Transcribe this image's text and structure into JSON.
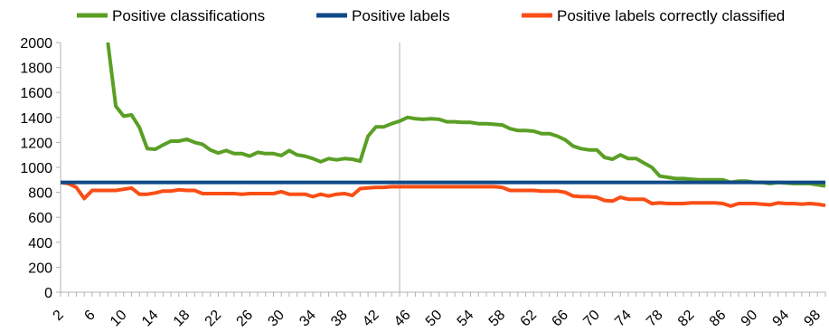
{
  "chart_data": {
    "type": "line",
    "title": "",
    "xlabel": "",
    "ylabel": "",
    "x": [
      2,
      3,
      4,
      5,
      6,
      7,
      8,
      9,
      10,
      11,
      12,
      13,
      14,
      15,
      16,
      17,
      18,
      19,
      20,
      21,
      22,
      23,
      24,
      25,
      26,
      27,
      28,
      29,
      30,
      31,
      32,
      33,
      34,
      35,
      36,
      37,
      38,
      39,
      40,
      41,
      42,
      43,
      44,
      45,
      46,
      47,
      48,
      49,
      50,
      51,
      52,
      53,
      54,
      55,
      56,
      57,
      58,
      59,
      60,
      61,
      62,
      63,
      64,
      65,
      66,
      67,
      68,
      69,
      70,
      71,
      72,
      73,
      74,
      75,
      76,
      77,
      78,
      79,
      80,
      81,
      82,
      83,
      84,
      85,
      86,
      87,
      88,
      89,
      90,
      91,
      92,
      93,
      94,
      95,
      96,
      97,
      98,
      99
    ],
    "x_tick_labels": [
      "2",
      "6",
      "10",
      "14",
      "18",
      "22",
      "26",
      "30",
      "34",
      "38",
      "42",
      "46",
      "50",
      "54",
      "58",
      "62",
      "66",
      "70",
      "74",
      "78",
      "82",
      "86",
      "90",
      "94",
      "98"
    ],
    "ylim": [
      0,
      2000
    ],
    "y_ticks": [
      0,
      200,
      400,
      600,
      800,
      1000,
      1200,
      1400,
      1600,
      1800,
      2000
    ],
    "grid": "vertical line at x=45",
    "legend_position": "top",
    "series": [
      {
        "name": "Positive classifications",
        "color": "#5a9f25",
        "values": [
          null,
          null,
          null,
          null,
          null,
          null,
          2000,
          1490,
          1410,
          1420,
          1320,
          1150,
          1145,
          1180,
          1210,
          1210,
          1225,
          1200,
          1185,
          1140,
          1115,
          1135,
          1110,
          1110,
          1090,
          1120,
          1110,
          1110,
          1095,
          1135,
          1100,
          1090,
          1070,
          1045,
          1070,
          1060,
          1070,
          1065,
          1050,
          1250,
          1325,
          1325,
          1350,
          1370,
          1400,
          1390,
          1385,
          1390,
          1385,
          1365,
          1365,
          1360,
          1360,
          1350,
          1350,
          1345,
          1340,
          1310,
          1295,
          1295,
          1290,
          1270,
          1270,
          1250,
          1220,
          1170,
          1150,
          1140,
          1140,
          1080,
          1065,
          1100,
          1070,
          1070,
          1035,
          1000,
          930,
          920,
          910,
          910,
          905,
          900,
          900,
          900,
          900,
          880,
          890,
          890,
          880,
          880,
          870,
          880,
          875,
          870,
          870,
          870,
          860,
          850
        ]
      },
      {
        "name": "Positive labels",
        "color": "#0f4a87",
        "values": [
          880,
          880,
          880,
          880,
          880,
          880,
          880,
          880,
          880,
          880,
          880,
          880,
          880,
          880,
          880,
          880,
          880,
          880,
          880,
          880,
          880,
          880,
          880,
          880,
          880,
          880,
          880,
          880,
          880,
          880,
          880,
          880,
          880,
          880,
          880,
          880,
          880,
          880,
          880,
          880,
          880,
          880,
          880,
          880,
          880,
          880,
          880,
          880,
          880,
          880,
          880,
          880,
          880,
          880,
          880,
          880,
          880,
          880,
          880,
          880,
          880,
          880,
          880,
          880,
          880,
          880,
          880,
          880,
          880,
          880,
          880,
          880,
          880,
          880,
          880,
          880,
          880,
          880,
          880,
          880,
          880,
          880,
          880,
          880,
          880,
          880,
          880,
          880,
          880,
          880,
          880,
          880,
          880,
          880,
          880,
          880,
          880,
          880
        ]
      },
      {
        "name": "Positive labels correctly classified",
        "color": "#fa4e16",
        "values": [
          880,
          870,
          840,
          750,
          815,
          815,
          815,
          815,
          825,
          835,
          785,
          785,
          795,
          810,
          810,
          820,
          815,
          815,
          790,
          790,
          790,
          790,
          790,
          785,
          790,
          790,
          790,
          790,
          805,
          785,
          785,
          785,
          765,
          785,
          770,
          785,
          790,
          775,
          830,
          835,
          840,
          840,
          845,
          845,
          845,
          845,
          845,
          845,
          845,
          845,
          845,
          845,
          845,
          845,
          845,
          845,
          840,
          815,
          815,
          815,
          815,
          810,
          810,
          810,
          800,
          770,
          765,
          765,
          760,
          735,
          730,
          760,
          745,
          745,
          745,
          710,
          715,
          710,
          710,
          710,
          715,
          715,
          715,
          715,
          710,
          690,
          710,
          710,
          710,
          705,
          700,
          715,
          710,
          710,
          705,
          710,
          705,
          695
        ]
      }
    ]
  }
}
